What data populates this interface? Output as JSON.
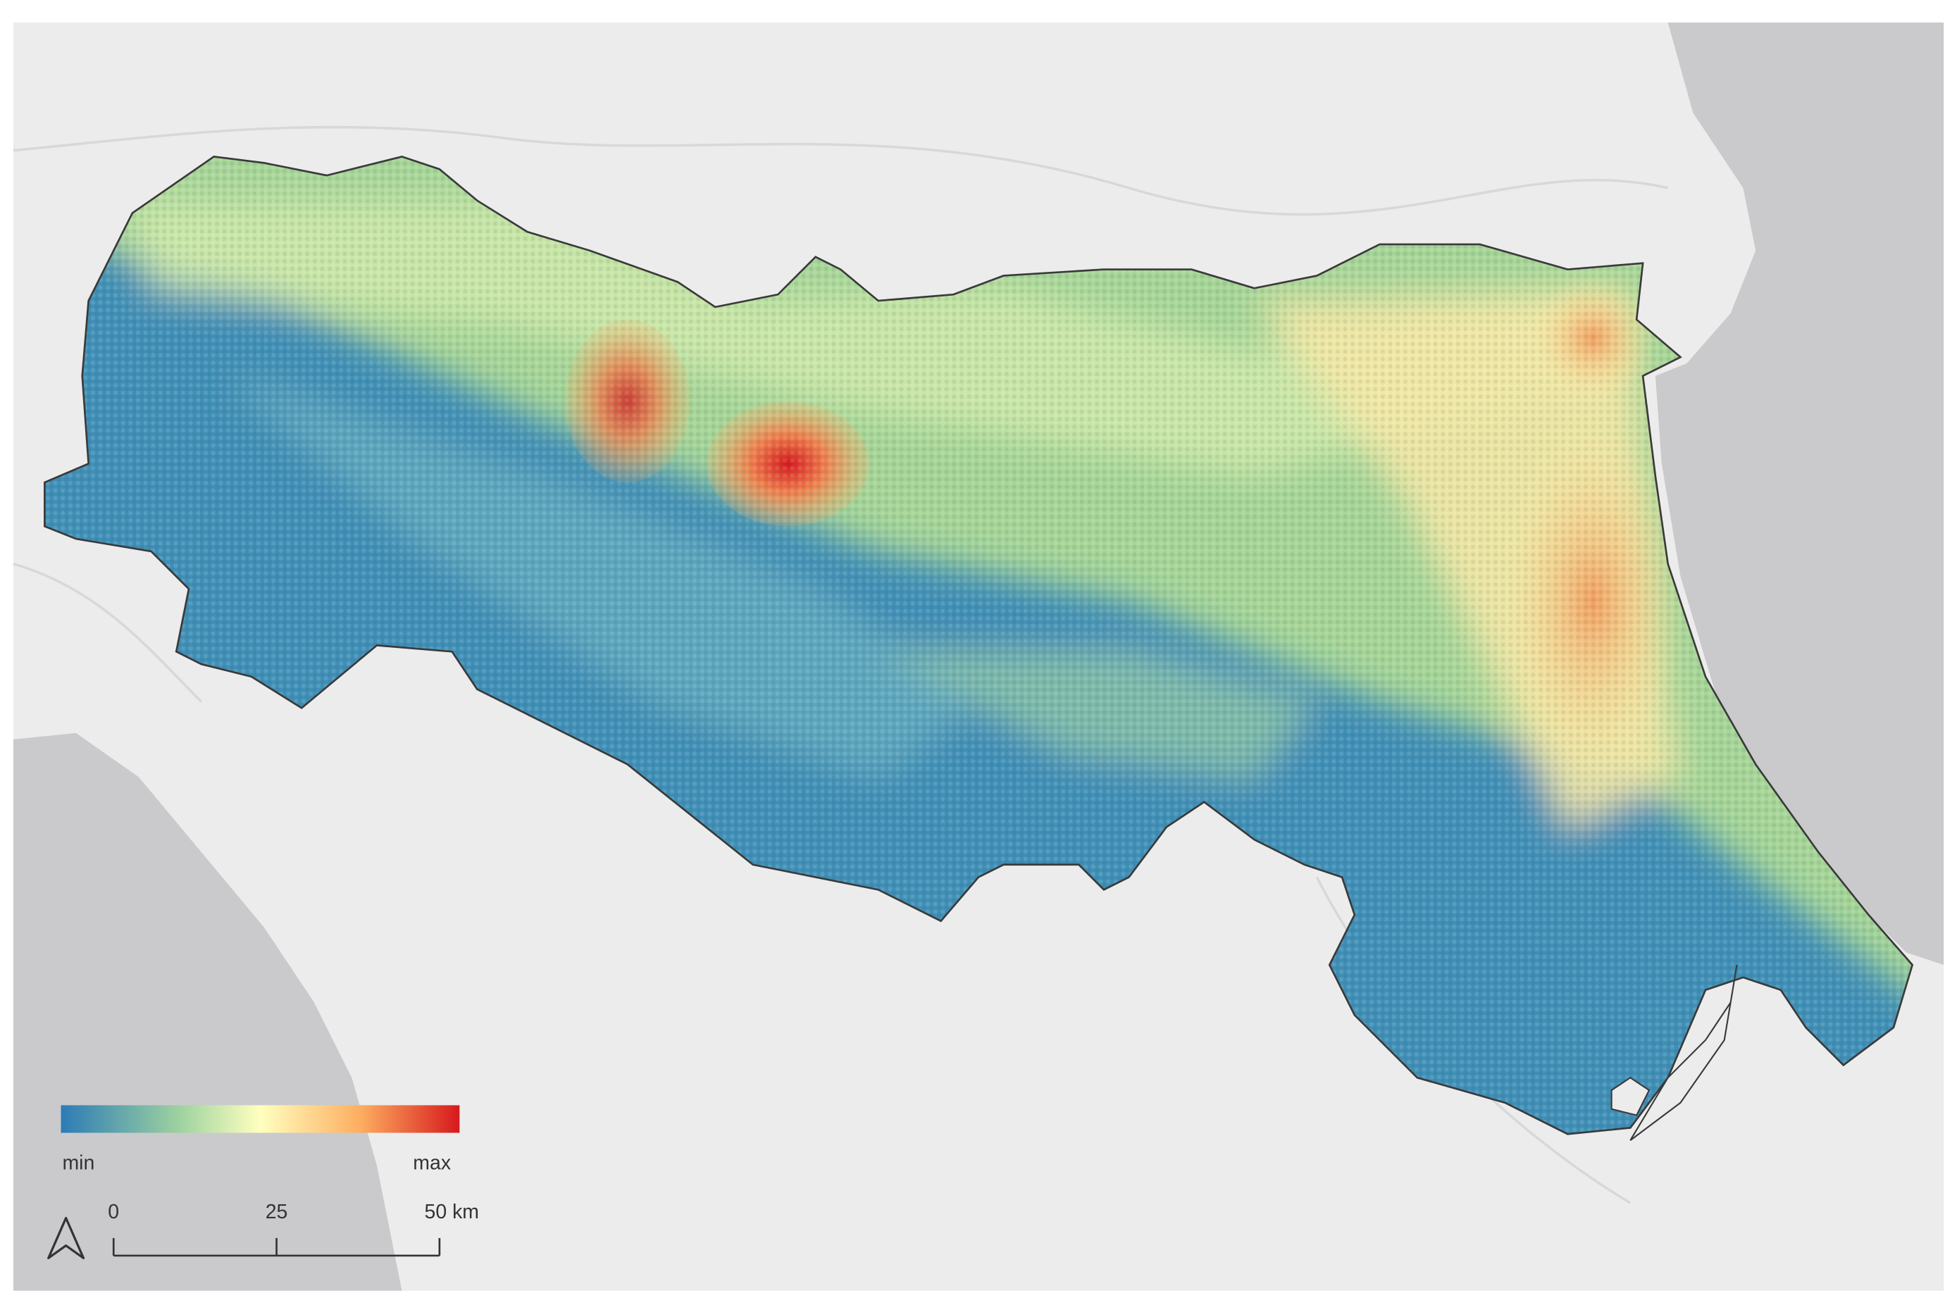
{
  "legend": {
    "min_label": "min",
    "max_label": "max"
  },
  "scale_bar": {
    "labels": [
      "0",
      "25",
      "50 km"
    ]
  }
}
